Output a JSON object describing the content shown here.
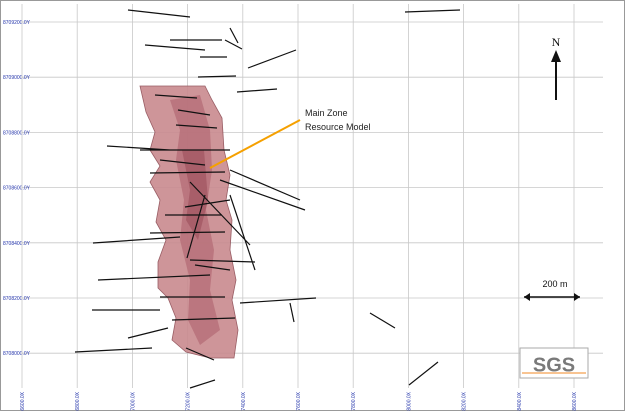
{
  "grid": {
    "northings": [
      "8709200.0Y",
      "8709000.0Y",
      "8708800.0Y",
      "8708600.0Y",
      "8708400.0Y",
      "8708200.0Y",
      "8708000.0Y"
    ],
    "eastings": [
      "416600.0X",
      "416800.0X",
      "417000.0X",
      "417200.0X",
      "417400.0X",
      "417600.0X",
      "417800.0X",
      "418000.0X",
      "418200.0X",
      "418400.0X",
      "418600.0X"
    ]
  },
  "annotation": {
    "lines": [
      "Main Zone",
      "Resource Model"
    ]
  },
  "north_arrow": "N",
  "scale_bar": "200 m",
  "logo": "SGS"
}
